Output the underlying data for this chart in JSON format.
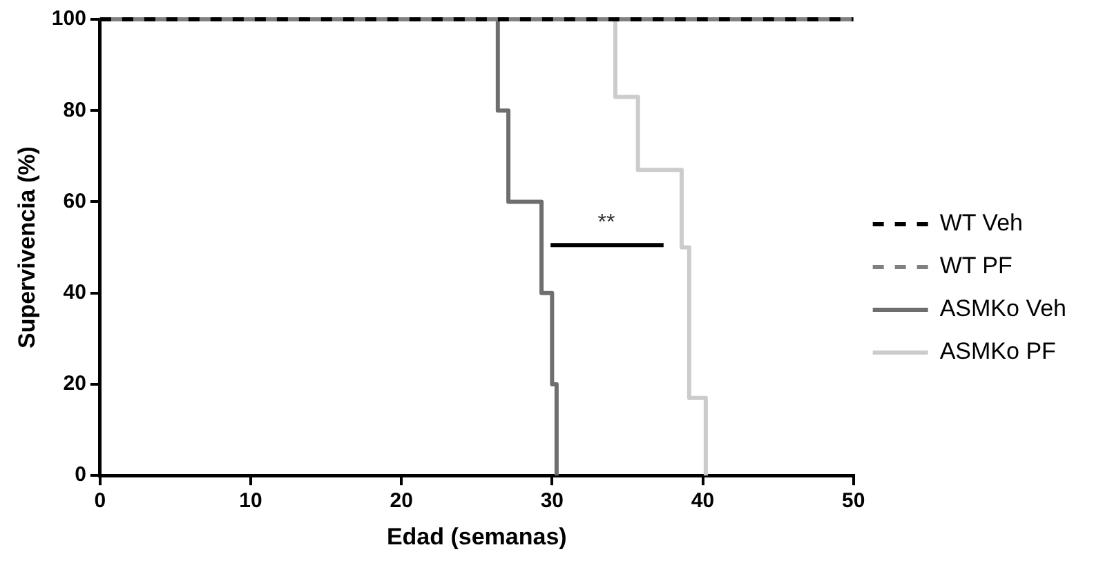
{
  "chart_data": {
    "type": "step",
    "xlabel": "Edad (semanas)",
    "ylabel": "Supervivencia (%)",
    "xlim": [
      0,
      50
    ],
    "xticks": [
      0,
      10,
      20,
      30,
      40,
      50
    ],
    "ylim": [
      0,
      100
    ],
    "yticks": [
      0,
      20,
      40,
      60,
      80,
      100
    ],
    "grid": false,
    "legend": "right",
    "marker": "none",
    "series": [
      {
        "name": "WT Veh",
        "color": "#000000",
        "line_style": "dashed",
        "x": [
          0,
          50
        ],
        "values": [
          100,
          100
        ]
      },
      {
        "name": "WT PF",
        "color": "#808080",
        "line_style": "dashed",
        "x": [
          0,
          50
        ],
        "values": [
          100,
          100
        ]
      },
      {
        "name": "ASMKo Veh",
        "color": "#6e6e6e",
        "line_style": "solid",
        "x": [
          0,
          26.4,
          27.1,
          29.3,
          30.0,
          30.3
        ],
        "values": [
          100,
          80,
          60,
          40,
          20,
          0
        ]
      },
      {
        "name": "ASMKo PF",
        "color": "#cccccc",
        "line_style": "solid",
        "x": [
          0,
          34.2,
          35.7,
          38.6,
          39.1,
          40.2
        ],
        "values": [
          100,
          83,
          67,
          50,
          17,
          0
        ]
      }
    ],
    "annotations": [
      "**"
    ]
  }
}
